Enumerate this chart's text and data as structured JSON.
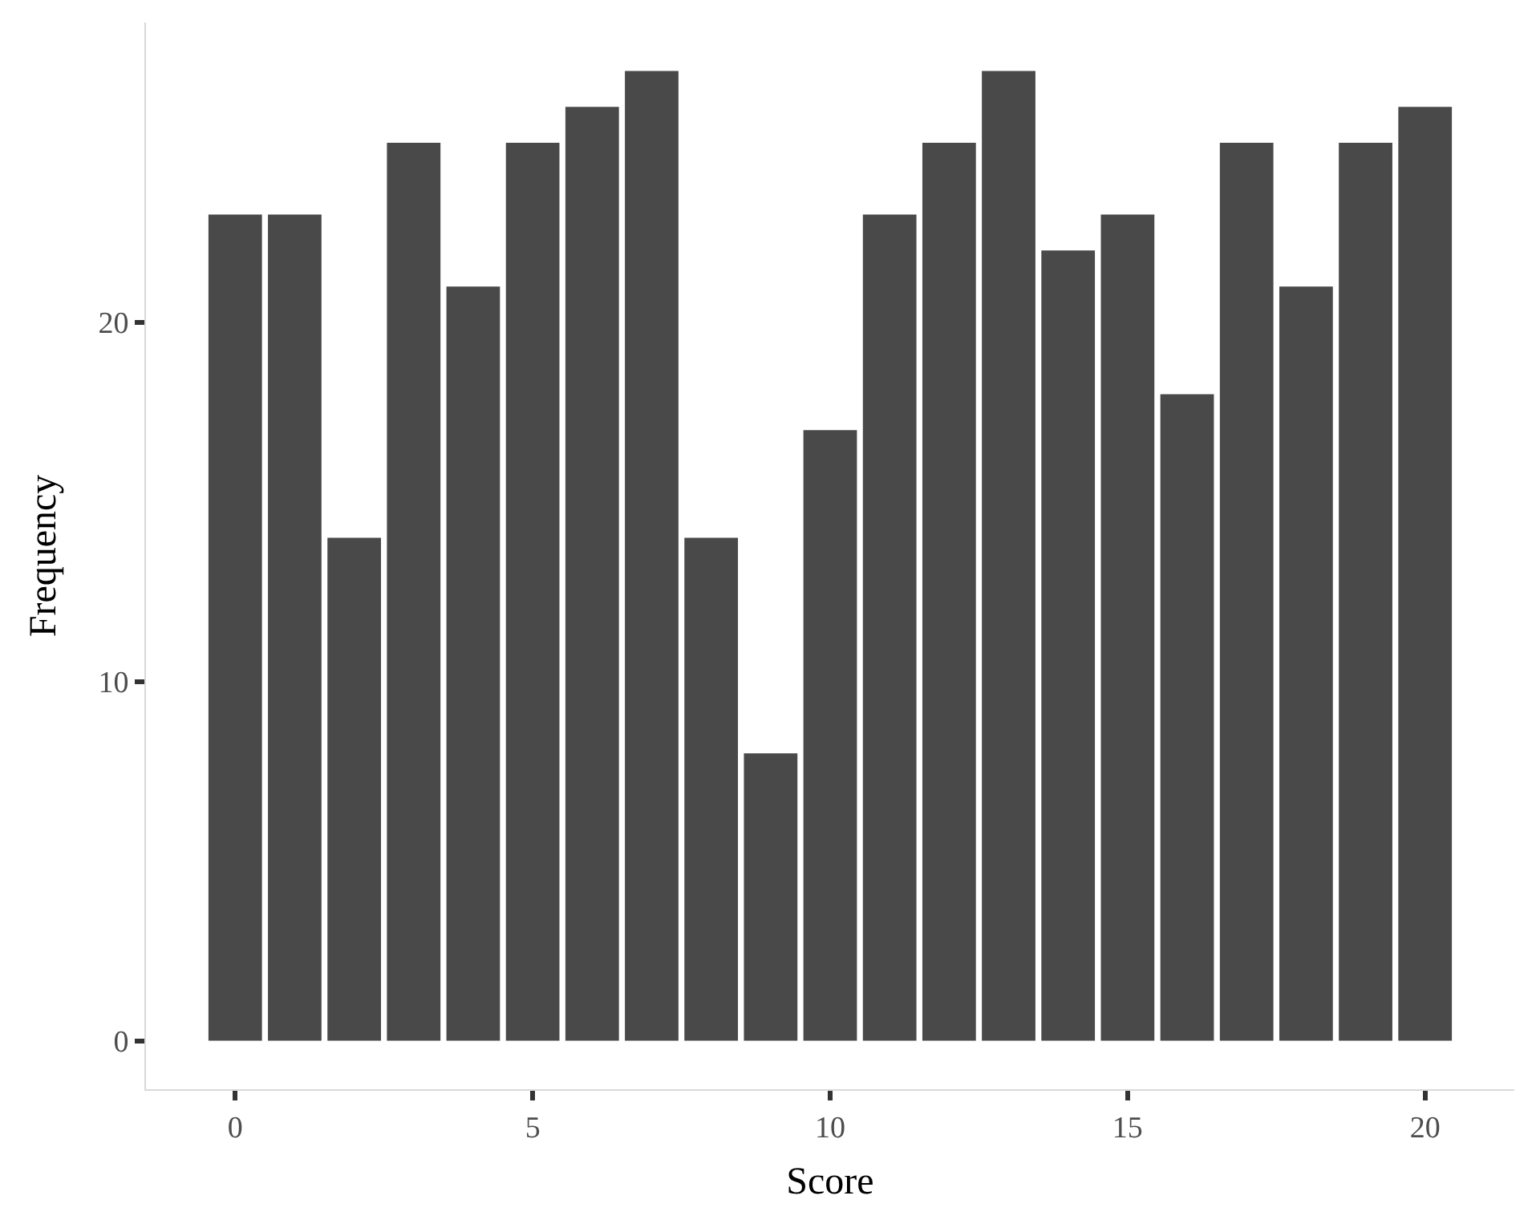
{
  "chart_data": {
    "type": "bar",
    "x": [
      0,
      1,
      2,
      3,
      4,
      5,
      6,
      7,
      8,
      9,
      10,
      11,
      12,
      13,
      14,
      15,
      16,
      17,
      18,
      19,
      20
    ],
    "values": [
      23,
      23,
      14,
      25,
      21,
      25,
      26,
      27,
      14,
      8,
      17,
      23,
      25,
      27,
      22,
      23,
      18,
      25,
      21,
      25,
      26
    ],
    "color": "#494949",
    "xlabel": "Score",
    "ylabel": "Frequency",
    "xlim": [
      -1.5,
      21.5
    ],
    "xticks": [
      0,
      5,
      10,
      15,
      20
    ],
    "ylim": [
      -1.35,
      28.35
    ],
    "yticks": [
      0,
      10,
      20
    ]
  }
}
